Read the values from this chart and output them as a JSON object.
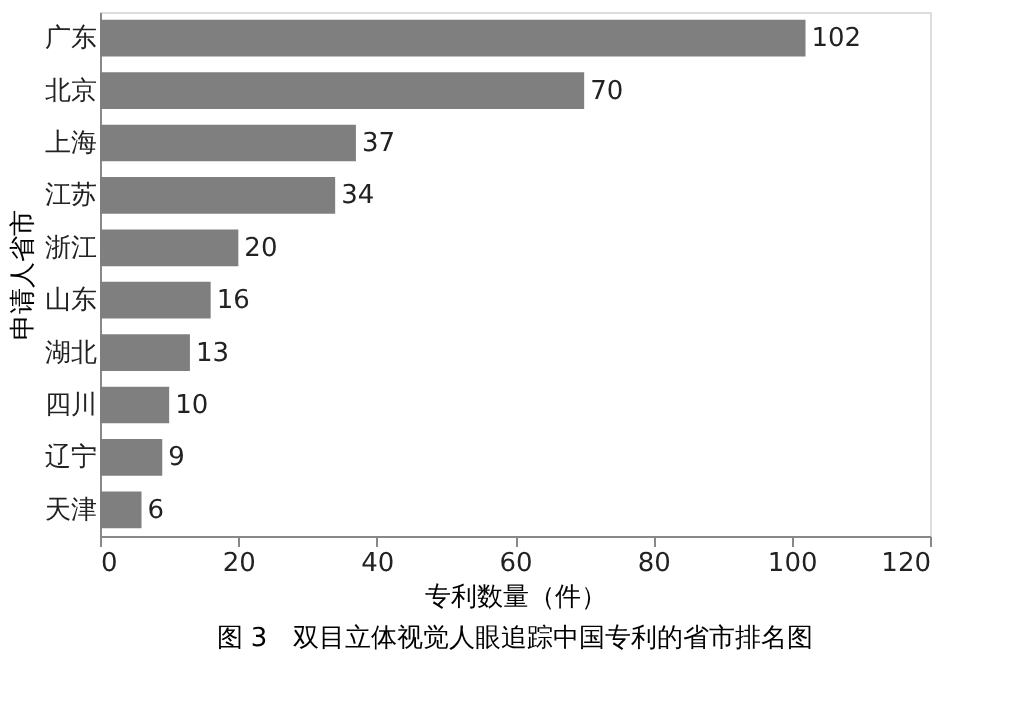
{
  "chart_data": {
    "type": "bar",
    "orientation": "horizontal",
    "title": "图 3　双目立体视觉人眼追踪中国专利的省市排名图",
    "categories": [
      "广东",
      "北京",
      "上海",
      "江苏",
      "浙江",
      "山东",
      "湖北",
      "四川",
      "辽宁",
      "天津"
    ],
    "values": [
      102,
      70,
      37,
      34,
      20,
      16,
      13,
      10,
      9,
      6
    ],
    "color": "#7f7f7f",
    "xlim": [
      0,
      120
    ],
    "xticks": [
      0,
      20,
      40,
      60,
      80,
      100,
      120
    ],
    "xlabel": "专利数量（件）",
    "ylabel": "申请人省市",
    "data_labels": true,
    "grid": false
  }
}
